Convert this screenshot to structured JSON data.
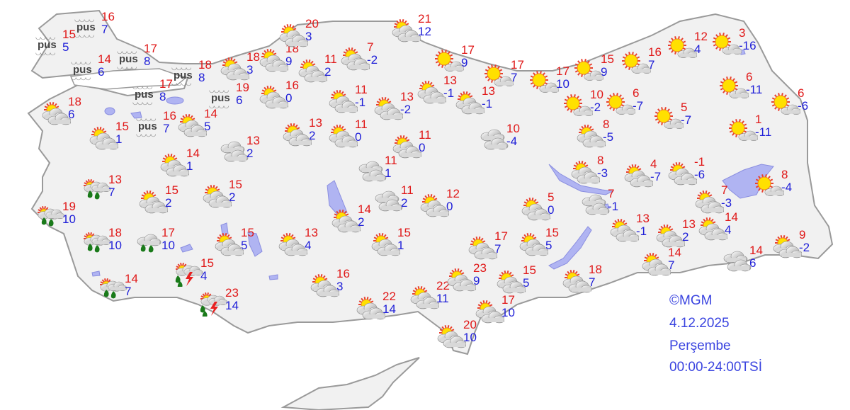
{
  "colors": {
    "land": "#f1f1f1",
    "border": "#9a9a9a",
    "water": "#b0b4f2",
    "max_temp": "#e01818",
    "min_temp": "#2020d8",
    "credit": "#3a44e0"
  },
  "fog_label": "pus",
  "stations": [
    {
      "icon": "fog",
      "max": "16",
      "min": "7"
    },
    {
      "icon": "fog",
      "max": "15",
      "min": "5"
    },
    {
      "icon": "fog",
      "max": "14",
      "min": "6"
    },
    {
      "icon": "fog",
      "max": "17",
      "min": "8"
    },
    {
      "icon": "fog",
      "max": "18",
      "min": "8"
    },
    {
      "icon": "fog",
      "max": "17",
      "min": "8"
    },
    {
      "icon": "fog",
      "max": "19",
      "min": "6"
    },
    {
      "icon": "fog",
      "max": "16",
      "min": "7"
    },
    {
      "icon": "partly-cloudy",
      "max": "18",
      "min": "6"
    },
    {
      "icon": "partly-cloudy",
      "max": "15",
      "min": "1"
    },
    {
      "icon": "partly-cloudy",
      "max": "14",
      "min": "1"
    },
    {
      "icon": "partly-cloudy",
      "max": "14",
      "min": "5"
    },
    {
      "icon": "partly-cloudy",
      "max": "18",
      "min": "3"
    },
    {
      "icon": "partly-cloudy",
      "max": "18",
      "min": "9"
    },
    {
      "icon": "partly-cloudy",
      "max": "20",
      "min": "3"
    },
    {
      "icon": "partly-cloudy",
      "max": "16",
      "min": "0"
    },
    {
      "icon": "partly-cloudy",
      "max": "11",
      "min": "2"
    },
    {
      "icon": "partly-cloudy",
      "max": "7",
      "min": "-2"
    },
    {
      "icon": "partly-cloudy",
      "max": "21",
      "min": "12"
    },
    {
      "icon": "partly-cloudy",
      "max": "11",
      "min": "-1"
    },
    {
      "icon": "partly-cloudy",
      "max": "13",
      "min": "-2"
    },
    {
      "icon": "partly-cloudy",
      "max": "13",
      "min": "-1"
    },
    {
      "icon": "partly-cloudy",
      "max": "13",
      "min": "-1"
    },
    {
      "icon": "partly-cloudy",
      "max": "13",
      "min": "2"
    },
    {
      "icon": "partly-cloudy",
      "max": "11",
      "min": "0"
    },
    {
      "icon": "partly-cloudy",
      "max": "11",
      "min": "0"
    },
    {
      "icon": "partly-cloudy",
      "max": "15",
      "min": "2"
    },
    {
      "icon": "partly-cloudy",
      "max": "15",
      "min": "2"
    },
    {
      "icon": "partly-cloudy",
      "max": "15",
      "min": "5"
    },
    {
      "icon": "partly-cloudy",
      "max": "13",
      "min": "4"
    },
    {
      "icon": "partly-cloudy",
      "max": "14",
      "min": "2"
    },
    {
      "icon": "partly-cloudy",
      "max": "15",
      "min": "1"
    },
    {
      "icon": "partly-cloudy",
      "max": "12",
      "min": "0"
    },
    {
      "icon": "partly-cloudy",
      "max": "16",
      "min": "3"
    },
    {
      "icon": "partly-cloudy",
      "max": "22",
      "min": "14"
    },
    {
      "icon": "partly-cloudy",
      "max": "22",
      "min": "11"
    },
    {
      "icon": "partly-cloudy",
      "max": "23",
      "min": "9"
    },
    {
      "icon": "partly-cloudy",
      "max": "17",
      "min": "7"
    },
    {
      "icon": "partly-cloudy",
      "max": "15",
      "min": "5"
    },
    {
      "icon": "partly-cloudy",
      "max": "17",
      "min": "10"
    },
    {
      "icon": "partly-cloudy",
      "max": "20",
      "min": "10"
    },
    {
      "icon": "partly-cloudy",
      "max": "5",
      "min": "0"
    },
    {
      "icon": "partly-cloudy",
      "max": "15",
      "min": "5"
    },
    {
      "icon": "partly-cloudy",
      "max": "18",
      "min": "7"
    },
    {
      "icon": "partly-cloudy",
      "max": "8",
      "min": "-3"
    },
    {
      "icon": "partly-cloudy",
      "max": "8",
      "min": "-5"
    },
    {
      "icon": "partly-cloudy",
      "max": "4",
      "min": "-7"
    },
    {
      "icon": "partly-cloudy",
      "max": "-1",
      "min": "-6"
    },
    {
      "icon": "partly-cloudy",
      "max": "13",
      "min": "-1"
    },
    {
      "icon": "partly-cloudy",
      "max": "13",
      "min": "2"
    },
    {
      "icon": "partly-cloudy",
      "max": "14",
      "min": "4"
    },
    {
      "icon": "partly-cloudy",
      "max": "14",
      "min": "7"
    },
    {
      "icon": "partly-cloudy",
      "max": "7",
      "min": "-3"
    },
    {
      "icon": "partly-cloudy",
      "max": "9",
      "min": "-2"
    },
    {
      "icon": "sunny",
      "max": "17",
      "min": "9"
    },
    {
      "icon": "sunny",
      "max": "17",
      "min": "7"
    },
    {
      "icon": "sunny",
      "max": "17",
      "min": "10"
    },
    {
      "icon": "sunny",
      "max": "15",
      "min": "9"
    },
    {
      "icon": "sunny",
      "max": "16",
      "min": "7"
    },
    {
      "icon": "sunny",
      "max": "12",
      "min": "4"
    },
    {
      "icon": "sunny",
      "max": "3",
      "min": "-16"
    },
    {
      "icon": "sunny",
      "max": "10",
      "min": "-2"
    },
    {
      "icon": "sunny",
      "max": "6",
      "min": "-7"
    },
    {
      "icon": "sunny",
      "max": "5",
      "min": "-7"
    },
    {
      "icon": "sunny",
      "max": "6",
      "min": "-11"
    },
    {
      "icon": "sunny",
      "max": "6",
      "min": "-6"
    },
    {
      "icon": "sunny",
      "max": "1",
      "min": "-11"
    },
    {
      "icon": "sunny",
      "max": "8",
      "min": "-4"
    },
    {
      "icon": "cloudy",
      "max": "13",
      "min": "2"
    },
    {
      "icon": "cloudy",
      "max": "11",
      "min": "1"
    },
    {
      "icon": "cloudy",
      "max": "11",
      "min": "2"
    },
    {
      "icon": "cloudy",
      "max": "10",
      "min": "-4"
    },
    {
      "icon": "cloudy",
      "max": "7",
      "min": "-1"
    },
    {
      "icon": "cloudy",
      "max": "14",
      "min": "6"
    },
    {
      "icon": "rain-showers",
      "max": "13",
      "min": "7"
    },
    {
      "icon": "rain-showers",
      "max": "19",
      "min": "10"
    },
    {
      "icon": "rain-showers",
      "max": "18",
      "min": "10"
    },
    {
      "icon": "rain-showers",
      "max": "14",
      "min": "7"
    },
    {
      "icon": "rain",
      "max": "17",
      "min": "10"
    },
    {
      "icon": "thunderstorm",
      "max": "15",
      "min": "4"
    },
    {
      "icon": "thunderstorm",
      "max": "23",
      "min": "14"
    }
  ],
  "credit": {
    "source": "©MGM",
    "date": "4.12.2025",
    "day": "Perşembe",
    "period": "00:00-24:00TSİ"
  }
}
